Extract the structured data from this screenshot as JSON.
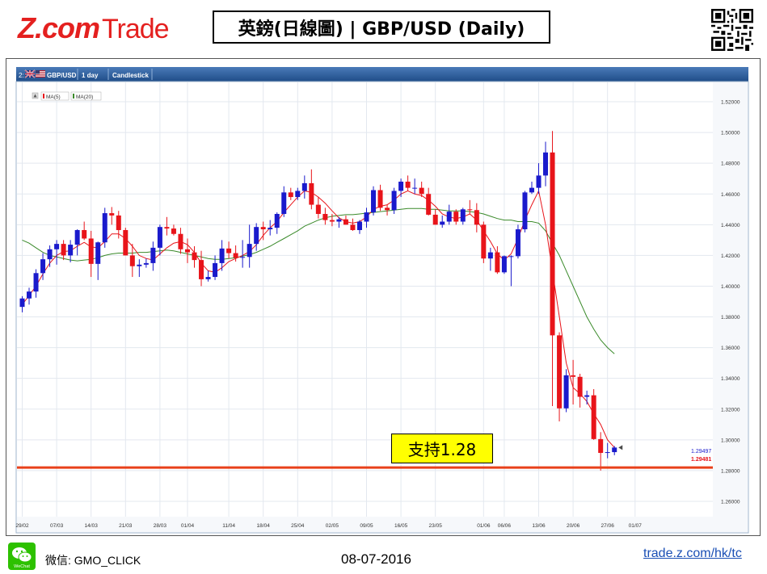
{
  "header": {
    "logo_brand": "Z.com",
    "logo_trade": "Trade",
    "title": "英鎊(日線圖) | GBP/USD (Daily)"
  },
  "toolbar": {
    "index": "2:",
    "symbol": "GBP/USD",
    "interval": "1 day",
    "chart_style": "Candlestick"
  },
  "legend": {
    "ma5": "MA(5)",
    "ma20": "MA(20)"
  },
  "annotation": {
    "support_label": "支持1.28"
  },
  "price_tags": {
    "upper": "1.29497",
    "lower": "1.29481"
  },
  "footer": {
    "wechat_label": "微信: GMO_CLICK",
    "wechat_icon_text": "WeChat",
    "date": "08-07-2016",
    "link": "trade.z.com/hk/tc"
  },
  "colors": {
    "up": "#1a1acc",
    "down": "#e8141a",
    "ma5": "#e8141a",
    "ma20": "#3a8a2a",
    "support": "#e8401a",
    "brand": "#e4201f",
    "toolbar": "#2f5f9a"
  },
  "chart_data": {
    "type": "candlestick",
    "title": "",
    "xlabel": "",
    "ylabel": "",
    "ylim": [
      1.25,
      1.53
    ],
    "y_ticks": [
      "1.52000",
      "1.50000",
      "1.48000",
      "1.46000",
      "1.44000",
      "1.42000",
      "1.40000",
      "1.38000",
      "1.36000",
      "1.34000",
      "1.32000",
      "1.30000",
      "1.28000",
      "1.26000"
    ],
    "x_tick_labels": [
      {
        "index": 0,
        "label": "29/02"
      },
      {
        "index": 5,
        "label": "07/03"
      },
      {
        "index": 10,
        "label": "14/03"
      },
      {
        "index": 15,
        "label": "21/03"
      },
      {
        "index": 20,
        "label": "28/03"
      },
      {
        "index": 24,
        "label": "01/04"
      },
      {
        "index": 30,
        "label": "11/04"
      },
      {
        "index": 35,
        "label": "18/04"
      },
      {
        "index": 40,
        "label": "25/04"
      },
      {
        "index": 45,
        "label": "02/05"
      },
      {
        "index": 50,
        "label": "09/05"
      },
      {
        "index": 55,
        "label": "16/05"
      },
      {
        "index": 60,
        "label": "23/05"
      },
      {
        "index": 67,
        "label": "01/06"
      },
      {
        "index": 70,
        "label": "06/06"
      },
      {
        "index": 75,
        "label": "13/06"
      },
      {
        "index": 80,
        "label": "20/06"
      },
      {
        "index": 85,
        "label": "27/06"
      },
      {
        "index": 89,
        "label": "01/07"
      }
    ],
    "support_level": 1.282,
    "candles": [
      [
        1.3865,
        1.3935,
        1.383,
        1.392
      ],
      [
        1.392,
        1.399,
        1.388,
        1.3965
      ],
      [
        1.3965,
        1.411,
        1.3925,
        1.4085
      ],
      [
        1.4085,
        1.4215,
        1.404,
        1.4175
      ],
      [
        1.4175,
        1.4265,
        1.4125,
        1.424
      ],
      [
        1.424,
        1.43,
        1.414,
        1.4275
      ],
      [
        1.4275,
        1.43,
        1.417,
        1.42
      ],
      [
        1.42,
        1.43,
        1.4155,
        1.427
      ],
      [
        1.427,
        1.437,
        1.42,
        1.4365
      ],
      [
        1.4365,
        1.442,
        1.43,
        1.431
      ],
      [
        1.431,
        1.436,
        1.406,
        1.4145
      ],
      [
        1.4145,
        1.429,
        1.404,
        1.4285
      ],
      [
        1.4285,
        1.451,
        1.425,
        1.4475
      ],
      [
        1.4475,
        1.4515,
        1.44,
        1.446
      ],
      [
        1.446,
        1.449,
        1.431,
        1.4365
      ],
      [
        1.4365,
        1.438,
        1.42,
        1.42
      ],
      [
        1.42,
        1.4275,
        1.406,
        1.413
      ],
      [
        1.413,
        1.4175,
        1.406,
        1.414
      ],
      [
        1.414,
        1.418,
        1.412,
        1.415
      ],
      [
        1.415,
        1.429,
        1.41,
        1.425
      ],
      [
        1.425,
        1.44,
        1.42,
        1.4385
      ],
      [
        1.4385,
        1.445,
        1.433,
        1.4375
      ],
      [
        1.4375,
        1.44,
        1.433,
        1.434
      ],
      [
        1.434,
        1.438,
        1.421,
        1.424
      ],
      [
        1.424,
        1.431,
        1.415,
        1.422
      ],
      [
        1.422,
        1.426,
        1.412,
        1.417
      ],
      [
        1.417,
        1.423,
        1.4,
        1.4045
      ],
      [
        1.4045,
        1.41,
        1.403,
        1.406
      ],
      [
        1.406,
        1.42,
        1.404,
        1.415
      ],
      [
        1.415,
        1.43,
        1.41,
        1.4245
      ],
      [
        1.4245,
        1.429,
        1.418,
        1.4215
      ],
      [
        1.4215,
        1.4265,
        1.416,
        1.4185
      ],
      [
        1.4185,
        1.43,
        1.412,
        1.419
      ],
      [
        1.419,
        1.44,
        1.412,
        1.4275
      ],
      [
        1.4275,
        1.441,
        1.423,
        1.4385
      ],
      [
        1.4385,
        1.442,
        1.43,
        1.437
      ],
      [
        1.437,
        1.443,
        1.433,
        1.438
      ],
      [
        1.438,
        1.448,
        1.434,
        1.447
      ],
      [
        1.447,
        1.465,
        1.445,
        1.461
      ],
      [
        1.461,
        1.464,
        1.456,
        1.458
      ],
      [
        1.458,
        1.464,
        1.456,
        1.462
      ],
      [
        1.462,
        1.472,
        1.457,
        1.467
      ],
      [
        1.467,
        1.476,
        1.45,
        1.453
      ],
      [
        1.453,
        1.458,
        1.444,
        1.447
      ],
      [
        1.447,
        1.451,
        1.44,
        1.443
      ],
      [
        1.443,
        1.447,
        1.439,
        1.442
      ],
      [
        1.442,
        1.445,
        1.438,
        1.4435
      ],
      [
        1.4435,
        1.446,
        1.44,
        1.44
      ],
      [
        1.44,
        1.444,
        1.436,
        1.4365
      ],
      [
        1.4365,
        1.443,
        1.434,
        1.442
      ],
      [
        1.442,
        1.451,
        1.438,
        1.448
      ],
      [
        1.448,
        1.465,
        1.446,
        1.4625
      ],
      [
        1.4625,
        1.466,
        1.449,
        1.451
      ],
      [
        1.451,
        1.453,
        1.446,
        1.4495
      ],
      [
        1.4495,
        1.464,
        1.447,
        1.462
      ],
      [
        1.462,
        1.47,
        1.458,
        1.468
      ],
      [
        1.468,
        1.472,
        1.462,
        1.464
      ],
      [
        1.464,
        1.47,
        1.46,
        1.464
      ],
      [
        1.464,
        1.468,
        1.458,
        1.46
      ],
      [
        1.46,
        1.464,
        1.446,
        1.4465
      ],
      [
        1.4465,
        1.45,
        1.44,
        1.44
      ],
      [
        1.44,
        1.446,
        1.438,
        1.442
      ],
      [
        1.442,
        1.453,
        1.44,
        1.4485
      ],
      [
        1.4485,
        1.45,
        1.44,
        1.442
      ],
      [
        1.442,
        1.451,
        1.44,
        1.45
      ],
      [
        1.45,
        1.456,
        1.447,
        1.4495
      ],
      [
        1.4495,
        1.454,
        1.435,
        1.44
      ],
      [
        1.44,
        1.442,
        1.415,
        1.418
      ],
      [
        1.418,
        1.425,
        1.41,
        1.422
      ],
      [
        1.422,
        1.426,
        1.408,
        1.409
      ],
      [
        1.409,
        1.42,
        1.408,
        1.4195
      ],
      [
        1.4195,
        1.42,
        1.4,
        1.4195
      ],
      [
        1.4195,
        1.44,
        1.418,
        1.437
      ],
      [
        1.437,
        1.462,
        1.435,
        1.461
      ],
      [
        1.461,
        1.468,
        1.46,
        1.464
      ],
      [
        1.464,
        1.48,
        1.46,
        1.472
      ],
      [
        1.472,
        1.494,
        1.465,
        1.487
      ],
      [
        1.487,
        1.501,
        1.322,
        1.368
      ],
      [
        1.368,
        1.37,
        1.312,
        1.3205
      ],
      [
        1.3205,
        1.346,
        1.318,
        1.342
      ],
      [
        1.342,
        1.352,
        1.323,
        1.341
      ],
      [
        1.341,
        1.343,
        1.321,
        1.328
      ],
      [
        1.328,
        1.332,
        1.323,
        1.329
      ],
      [
        1.329,
        1.333,
        1.3,
        1.3005
      ],
      [
        1.3005,
        1.305,
        1.28,
        1.2915
      ],
      [
        1.2915,
        1.298,
        1.288,
        1.292
      ],
      [
        1.292,
        1.296,
        1.29,
        1.295
      ]
    ],
    "ma5": [
      1.388,
      1.394,
      1.4,
      1.408,
      1.415,
      1.42,
      1.4225,
      1.423,
      1.426,
      1.4285,
      1.4255,
      1.425,
      1.429,
      1.434,
      1.434,
      1.431,
      1.426,
      1.42,
      1.418,
      1.417,
      1.421,
      1.425,
      1.428,
      1.429,
      1.427,
      1.422,
      1.415,
      1.41,
      1.409,
      1.412,
      1.416,
      1.418,
      1.42,
      1.4225,
      1.427,
      1.433,
      1.438,
      1.442,
      1.448,
      1.453,
      1.458,
      1.462,
      1.461,
      1.458,
      1.454,
      1.449,
      1.4445,
      1.442,
      1.441,
      1.442,
      1.445,
      1.45,
      1.452,
      1.453,
      1.456,
      1.46,
      1.462,
      1.46,
      1.459,
      1.456,
      1.452,
      1.447,
      1.445,
      1.444,
      1.445,
      1.447,
      1.443,
      1.436,
      1.429,
      1.421,
      1.417,
      1.421,
      1.431,
      1.443,
      1.453,
      1.462,
      1.44,
      1.41,
      1.38,
      1.35,
      1.334,
      1.33,
      1.325,
      1.317,
      1.31,
      1.3,
      1.295
    ],
    "ma20": [
      1.43,
      1.428,
      1.425,
      1.422,
      1.42,
      1.419,
      1.418,
      1.417,
      1.4165,
      1.417,
      1.4175,
      1.4185,
      1.42,
      1.421,
      1.4215,
      1.4215,
      1.4215,
      1.422,
      1.422,
      1.4225,
      1.423,
      1.4235,
      1.423,
      1.422,
      1.421,
      1.42,
      1.419,
      1.418,
      1.4175,
      1.4175,
      1.418,
      1.4185,
      1.4195,
      1.4205,
      1.422,
      1.424,
      1.426,
      1.4285,
      1.431,
      1.4335,
      1.436,
      1.439,
      1.441,
      1.443,
      1.4445,
      1.4455,
      1.446,
      1.4465,
      1.4465,
      1.447,
      1.4475,
      1.448,
      1.4485,
      1.449,
      1.4495,
      1.45,
      1.4505,
      1.4505,
      1.4505,
      1.45,
      1.45,
      1.4495,
      1.449,
      1.449,
      1.449,
      1.4485,
      1.448,
      1.447,
      1.4455,
      1.444,
      1.443,
      1.443,
      1.442,
      1.442,
      1.442,
      1.441,
      1.436,
      1.428,
      1.42,
      1.41,
      1.4,
      1.39,
      1.38,
      1.372,
      1.365,
      1.36,
      1.356
    ]
  }
}
